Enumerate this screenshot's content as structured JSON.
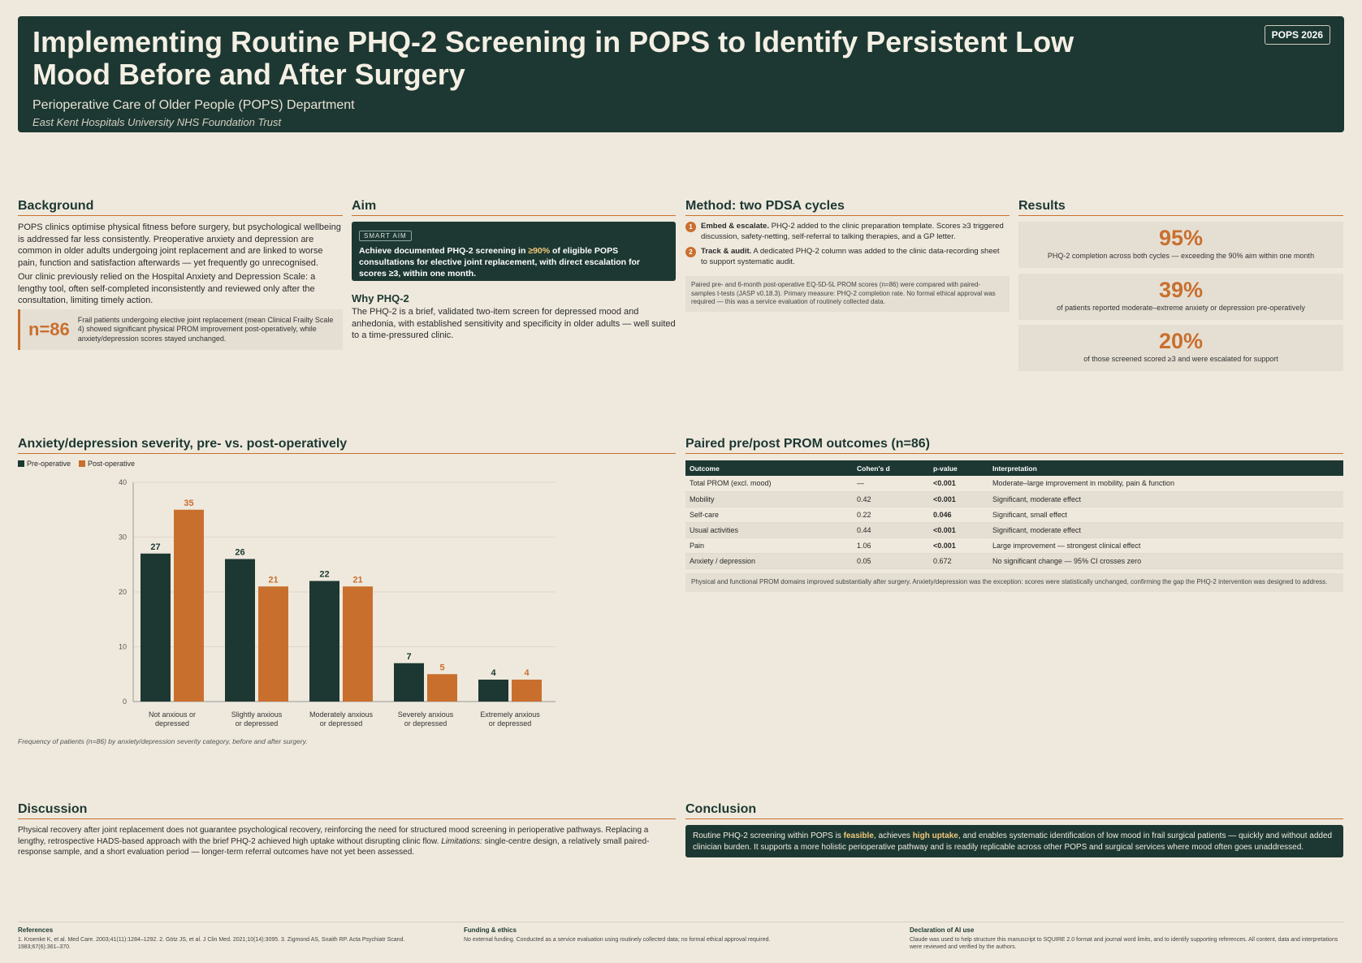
{
  "header": {
    "title": "Implementing Routine PHQ-2 Screening in POPS to Identify Persistent Low Mood Before and After Surgery",
    "department": "Perioperative Care of Older People (POPS) Department",
    "trust": "East Kent Hospitals University NHS Foundation Trust",
    "badge": "POPS 2026"
  },
  "background": {
    "title": "Background",
    "p1": "POPS clinics optimise physical fitness before surgery, but psychological wellbeing is addressed far less consistently. Preoperative anxiety and depression are common in older adults undergoing joint replacement and are linked to worse pain, function and satisfaction afterwards — yet frequently go unrecognised.",
    "p2": "Our clinic previously relied on the Hospital Anxiety and Depression Scale: a lengthy tool, often self-completed inconsistently and reviewed only after the consultation, limiting timely action.",
    "callout_num": "n=86",
    "callout_text": "Frail patients undergoing elective joint replacement (mean Clinical Frailty Scale 4) showed significant physical PROM improvement post-operatively, while anxiety/depression scores stayed unchanged."
  },
  "aim": {
    "title": "Aim",
    "tag": "SMART AIM",
    "text_a": "Achieve documented PHQ-2 screening in ",
    "text_hl": "≥90%",
    "text_b": " of eligible POPS consultations for elective joint replacement, with direct escalation for scores ≥3, within one month.",
    "why_title": "Why PHQ-2",
    "why_text": "The PHQ-2 is a brief, validated two-item screen for depressed mood and anhedonia, with established sensitivity and specificity in older adults — well suited to a time-pressured clinic."
  },
  "method": {
    "title": "Method: two PDSA cycles",
    "step1_num": "1",
    "step1_bold": "Embed & escalate.",
    "step1_text": " PHQ-2 added to the clinic preparation template. Scores ≥3 triggered discussion, safety-netting, self-referral to talking therapies, and a GP letter.",
    "step2_num": "2",
    "step2_bold": "Track & audit.",
    "step2_text": " A dedicated PHQ-2 column was added to the clinic data-recording sheet to support systematic audit.",
    "note": "Paired pre- and 6-month post-operative EQ-5D-5L PROM scores (n=86) were compared with paired-samples t-tests (JASP v0.18.3). Primary measure: PHQ-2 completion rate. No formal ethical approval was required — this was a service evaluation of routinely collected data."
  },
  "results": {
    "title": "Results",
    "cards": [
      {
        "value": "95%",
        "label": "PHQ-2 completion across both cycles — exceeding the 90% aim within one month"
      },
      {
        "value": "39%",
        "label": "of patients reported moderate–extreme anxiety or depression pre-operatively"
      },
      {
        "value": "20%",
        "label": "of those screened scored ≥3 and were escalated for support"
      }
    ]
  },
  "chart_section": {
    "title": "Anxiety/depression severity, pre- vs. post-operatively",
    "caption": "Frequency of patients (n=86) by anxiety/depression severity category, before and after surgery."
  },
  "chart_data": {
    "type": "bar",
    "categories": [
      [
        "Not anxious or",
        "depressed"
      ],
      [
        "Slightly anxious",
        "or depressed"
      ],
      [
        "Moderately anxious",
        "or depressed"
      ],
      [
        "Severely anxious",
        "or depressed"
      ],
      [
        "Extremely anxious",
        "or depressed"
      ]
    ],
    "series": [
      {
        "name": "Pre-operative",
        "values": [
          27,
          26,
          22,
          7,
          4
        ],
        "color": "#1d3832"
      },
      {
        "name": "Post-operative",
        "values": [
          35,
          21,
          21,
          5,
          4
        ],
        "color": "#c96f2e"
      }
    ],
    "ylim": [
      0,
      40
    ],
    "yticks": [
      0,
      10,
      20,
      30,
      40
    ],
    "grid": true,
    "legend": "top-left"
  },
  "prom": {
    "title": "Paired pre/post PROM outcomes (n=86)",
    "headers": [
      "Outcome",
      "Cohen's d",
      "p-value",
      "Interpretation"
    ],
    "rows": [
      [
        "Total PROM (excl. mood)",
        "—",
        "<0.001",
        "Moderate–large improvement in mobility, pain & function"
      ],
      [
        "Mobility",
        "0.42",
        "<0.001",
        "Significant, moderate effect"
      ],
      [
        "Self-care",
        "0.22",
        "0.046",
        "Significant, small effect"
      ],
      [
        "Usual activities",
        "0.44",
        "<0.001",
        "Significant, moderate effect"
      ],
      [
        "Pain",
        "1.06",
        "<0.001",
        "Large improvement — strongest clinical effect"
      ],
      [
        "Anxiety / depression",
        "0.05",
        "0.672",
        "No significant change — 95% CI crosses zero"
      ]
    ],
    "note": "Physical and functional PROM domains improved substantially after surgery. Anxiety/depression was the exception: scores were statistically unchanged, confirming the gap the PHQ-2 intervention was designed to address."
  },
  "discussion": {
    "title": "Discussion",
    "text_a": "Physical recovery after joint replacement does not guarantee psychological recovery, reinforcing the need for structured mood screening in perioperative pathways. Replacing a lengthy, retrospective HADS-based approach with the brief PHQ-2 achieved high uptake without disrupting clinic flow. ",
    "text_italic": "Limitations:",
    "text_b": " single-centre design, a relatively small paired-response sample, and a short evaluation period — longer-term referral outcomes have not yet been assessed."
  },
  "conclusion": {
    "title": "Conclusion",
    "a": "Routine PHQ-2 screening within POPS is ",
    "hl1": "feasible",
    "b": ", achieves ",
    "hl2": "high uptake",
    "c": ", and enables systematic identification of low mood in frail surgical patients — quickly and without added clinician burden. It supports a more holistic perioperative pathway and is readily replicable across other POPS and surgical services where mood often goes unaddressed."
  },
  "footer": {
    "refs_title": "References",
    "refs": "1. Kroenke K, et al. Med Care. 2003;41(11):1284–1292.   2. Götz JS, et al. J Clin Med. 2021;10(14):3095.   3. Zigmond AS, Snaith RP. Acta Psychiatr Scand. 1983;67(6):361–370.",
    "funding_title": "Funding & ethics",
    "funding": "No external funding. Conducted as a service evaluation using routinely collected data; no formal ethical approval required.",
    "ai_title": "Declaration of AI use",
    "ai": "Claude was used to help structure this manuscript to SQUIRE 2.0 format and journal word limits, and to identify supporting references. All content, data and interpretations were reviewed and verified by the authors."
  }
}
